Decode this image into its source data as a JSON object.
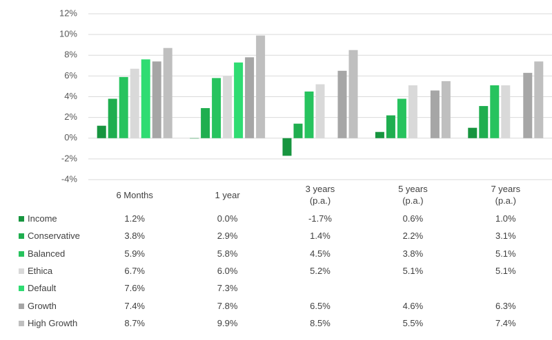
{
  "chart_data": {
    "type": "bar",
    "categories": [
      "6 Months",
      "1 year",
      "3 years (p.a.)",
      "5 years (p.a.)",
      "7 years (p.a.)"
    ],
    "ylim": [
      -4,
      12
    ],
    "yticks": [
      {
        "value": -4,
        "label": "-4%"
      },
      {
        "value": -2,
        "label": "-2%"
      },
      {
        "value": 0,
        "label": "0%"
      },
      {
        "value": 2,
        "label": "2%"
      },
      {
        "value": 4,
        "label": "4%"
      },
      {
        "value": 6,
        "label": "6%"
      },
      {
        "value": 8,
        "label": "8%"
      },
      {
        "value": 10,
        "label": "10%"
      },
      {
        "value": 12,
        "label": "12%"
      }
    ],
    "grid": true,
    "series": [
      {
        "name": "Income",
        "color": "#17953f",
        "values": [
          1.2,
          0.0,
          -1.7,
          0.6,
          1.0
        ],
        "value_labels": [
          "1.2%",
          "0.0%",
          "-1.7%",
          "0.6%",
          "1.0%"
        ]
      },
      {
        "name": "Conservative",
        "color": "#1fae4f",
        "values": [
          3.8,
          2.9,
          1.4,
          2.2,
          3.1
        ],
        "value_labels": [
          "3.8%",
          "2.9%",
          "1.4%",
          "2.2%",
          "3.1%"
        ]
      },
      {
        "name": "Balanced",
        "color": "#27c35e",
        "values": [
          5.9,
          5.8,
          4.5,
          3.8,
          5.1
        ],
        "value_labels": [
          "5.9%",
          "5.8%",
          "4.5%",
          "3.8%",
          "5.1%"
        ]
      },
      {
        "name": "Ethica",
        "color": "#d9d9d9",
        "values": [
          6.7,
          6.0,
          5.2,
          5.1,
          5.1
        ],
        "value_labels": [
          "6.7%",
          "6.0%",
          "5.2%",
          "5.1%",
          "5.1%"
        ]
      },
      {
        "name": "Default",
        "color": "#2fdc72",
        "values": [
          7.6,
          7.3,
          null,
          null,
          null
        ],
        "value_labels": [
          "7.6%",
          "7.3%",
          null,
          null,
          null
        ]
      },
      {
        "name": "Growth",
        "color": "#a6a6a6",
        "values": [
          7.4,
          7.8,
          6.5,
          4.6,
          6.3
        ],
        "value_labels": [
          "7.4%",
          "7.8%",
          "6.5%",
          "4.6%",
          "6.3%"
        ]
      },
      {
        "name": "High Growth",
        "color": "#bfbfbf",
        "values": [
          8.7,
          9.9,
          8.5,
          5.5,
          7.4
        ],
        "value_labels": [
          "8.7%",
          "9.9%",
          "8.5%",
          "5.5%",
          "7.4%"
        ]
      }
    ]
  }
}
